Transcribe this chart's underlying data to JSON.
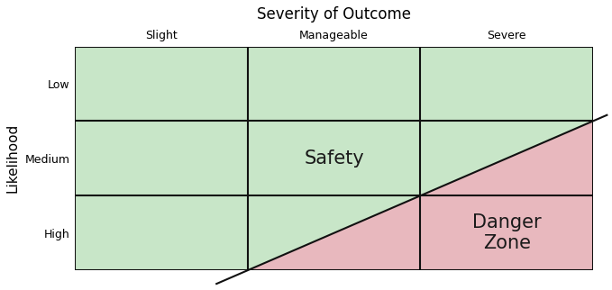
{
  "title": "Severity of Outcome",
  "ylabel": "Likelihood",
  "x_labels": [
    "Slight",
    "Manageable",
    "Severe"
  ],
  "y_labels": [
    "Low",
    "Medium",
    "High"
  ],
  "green_color": "#c8e6c8",
  "pink_color": "#e8b8be",
  "grid_color": "#111111",
  "line_color": "#111111",
  "safety_label": "Safety",
  "danger_label": "Danger\nZone",
  "safety_fontsize": 15,
  "danger_fontsize": 15,
  "title_fontsize": 12,
  "axis_label_fontsize": 11,
  "tick_fontsize": 9,
  "figwidth": 6.79,
  "figheight": 3.22,
  "dpi": 100
}
